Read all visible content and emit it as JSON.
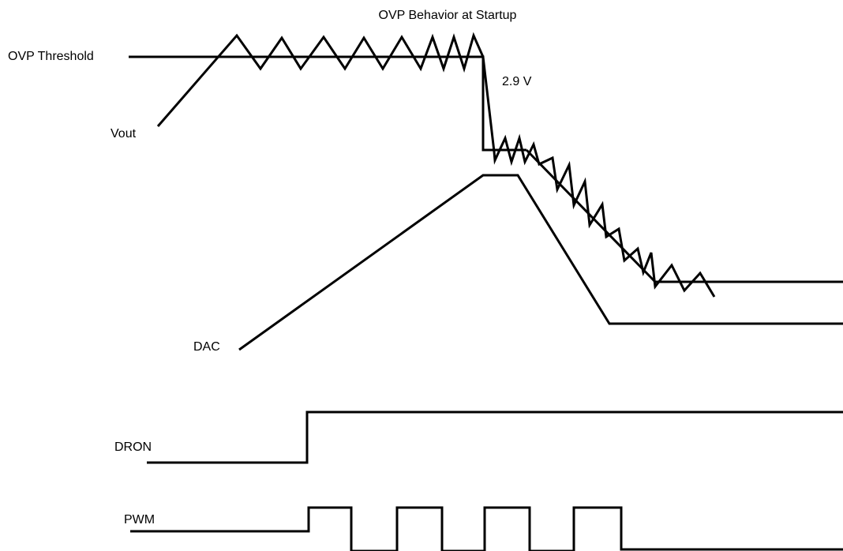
{
  "title": "OVP Behavior at Startup",
  "labels": {
    "ovp_threshold": "OVP Threshold",
    "vout": "Vout",
    "dac": "DAC",
    "dron": "DRON",
    "pwm": "PWM",
    "ovp_level": "2.9 V"
  },
  "colors": {
    "line": "#000000",
    "background": "#ffffff"
  }
}
